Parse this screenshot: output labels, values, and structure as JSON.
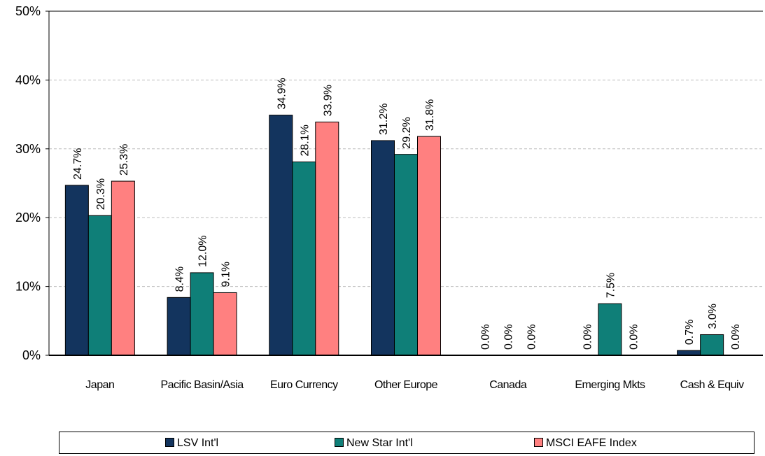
{
  "chart_data": {
    "type": "bar",
    "title": "",
    "xlabel": "",
    "ylabel": "",
    "ylim": [
      0,
      50
    ],
    "yticks": [
      "0%",
      "10%",
      "20%",
      "30%",
      "40%",
      "50%"
    ],
    "grid": true,
    "legend_position": "bottom",
    "categories": [
      "Japan",
      "Pacific Basin/Asia",
      "Euro Currency",
      "Other Europe",
      "Canada",
      "Emerging Mkts",
      "Cash & Equiv"
    ],
    "series": [
      {
        "name": "LSV Int'l",
        "color": "#13345e",
        "values": [
          24.7,
          8.4,
          34.9,
          31.2,
          0.0,
          0.0,
          0.7
        ],
        "labels": [
          "24.7%",
          "8.4%",
          "34.9%",
          "31.2%",
          "0.0%",
          "0.0%",
          "0.7%"
        ]
      },
      {
        "name": "New Star Int'l",
        "color": "#0f7f78",
        "values": [
          20.3,
          12.0,
          28.1,
          29.2,
          0.0,
          7.5,
          3.0
        ],
        "labels": [
          "20.3%",
          "12.0%",
          "28.1%",
          "29.2%",
          "0.0%",
          "7.5%",
          "3.0%"
        ]
      },
      {
        "name": "MSCI EAFE Index",
        "color": "#ff8080",
        "values": [
          25.3,
          9.1,
          33.9,
          31.8,
          0.0,
          0.0,
          0.0
        ],
        "labels": [
          "25.3%",
          "9.1%",
          "33.9%",
          "31.8%",
          "0.0%",
          "0.0%",
          "0.0%"
        ]
      }
    ]
  }
}
